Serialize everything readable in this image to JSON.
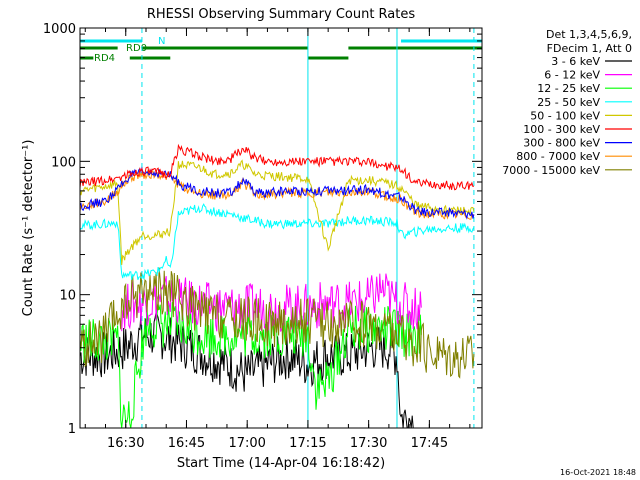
{
  "chart_data": {
    "type": "line",
    "title": "RHESSI Observing Summary Count Rates",
    "xlabel": "Start Time (14-Apr-04 16:18:42)",
    "ylabel": "Count Rate (s⁻¹ detector⁻¹)",
    "x_scale": "time",
    "y_scale": "log",
    "xlim": [
      "16:18:42",
      "17:58:00"
    ],
    "ylim": [
      1,
      1000
    ],
    "x_ticks": [
      "16:30",
      "16:45",
      "17:00",
      "17:15",
      "17:30",
      "17:45"
    ],
    "y_ticks": [
      "1",
      "10",
      "100",
      "1000"
    ],
    "legend_header": [
      "Det 1,3,4,5,6,9,",
      "FDecim 1, Att 0"
    ],
    "legend_position": "right",
    "footer_timestamp": "16-Oct-2021 18:48",
    "flags": {
      "N": {
        "label": "N",
        "color": "#00e5ee",
        "intervals": [
          [
            "16:18:42",
            "16:34:00"
          ],
          [
            "17:38:00",
            "17:58:00"
          ]
        ]
      },
      "RD0": {
        "label": "RD0",
        "color": "#008000",
        "intervals": [
          [
            "16:18:42",
            "16:28:00"
          ],
          [
            "16:34:00",
            "17:15:00"
          ],
          [
            "17:25:00",
            "17:58:00"
          ]
        ]
      },
      "RD4": {
        "label": "RD4",
        "color": "#008000",
        "intervals": [
          [
            "16:18:42",
            "16:22:00"
          ],
          [
            "16:31:00",
            "16:41:00"
          ],
          [
            "17:15:00",
            "17:25:00"
          ]
        ]
      }
    },
    "vlines_solid": [
      "16:18:42",
      "17:15:00",
      "17:37:00"
    ],
    "vlines_dashed": [
      "16:34:00",
      "17:56:00"
    ],
    "series": [
      {
        "name": "3 - 6 keV",
        "color": "#000000",
        "x": [
          "16:18:42",
          "16:25:00",
          "16:30:00",
          "16:34:00",
          "16:38:00",
          "16:42:00",
          "16:46:00",
          "16:50:00",
          "16:55:00",
          "17:00:00",
          "17:05:00",
          "17:10:00",
          "17:15:00",
          "17:20:00",
          "17:25:00",
          "17:30:00",
          "17:35:00",
          "17:37:00",
          "17:38:00",
          "17:40:00",
          "17:42:00"
        ],
        "y": [
          3.5,
          3.5,
          4,
          5,
          5,
          4.5,
          4,
          3.5,
          3.0,
          2.5,
          3,
          3.5,
          3,
          3.5,
          3.5,
          4,
          4,
          3.5,
          1.2,
          1.2,
          1
        ]
      },
      {
        "name": "6 - 12 keV",
        "color": "#ff00ff",
        "x": [
          "16:29:00",
          "16:32:00",
          "16:36:00",
          "16:40:00",
          "16:44:00",
          "16:48:00",
          "16:52:00",
          "16:56:00",
          "17:00:00",
          "17:05:00",
          "17:10:00",
          "17:15:00",
          "17:20:00",
          "17:25:00",
          "17:30:00",
          "17:33:00",
          "17:36:00",
          "17:40:00",
          "17:43:00"
        ],
        "y": [
          8,
          8.5,
          9,
          9.5,
          9,
          8.5,
          8,
          8,
          8,
          8,
          8,
          8,
          8.5,
          8.5,
          9,
          11,
          9,
          8,
          8
        ]
      },
      {
        "name": "12 - 25 keV",
        "color": "#00ff00",
        "x": [
          "16:18:42",
          "16:26:00",
          "16:28:00",
          "16:29:00",
          "16:31:00",
          "16:35:00",
          "16:40:00",
          "16:45:00",
          "16:50:00",
          "16:55:00",
          "17:00:00",
          "17:05:00",
          "17:10:00",
          "17:15:00",
          "17:17:00",
          "17:20:00",
          "17:25:00",
          "17:30:00",
          "17:35:00",
          "17:40:00",
          "17:43:00"
        ],
        "y": [
          4.5,
          4.5,
          4.5,
          1.2,
          1.2,
          6,
          6,
          5.5,
          5,
          5,
          5,
          5,
          5,
          5,
          2,
          2.2,
          5.5,
          5.5,
          5.5,
          5,
          5
        ]
      },
      {
        "name": "25 - 50 keV",
        "color": "#00ffff",
        "x": [
          "16:18:42",
          "16:26:00",
          "16:28:00",
          "16:29:00",
          "16:34:00",
          "16:38:00",
          "16:40:00",
          "16:41:00",
          "16:43:00",
          "16:48:00",
          "16:52:00",
          "16:56:00",
          "17:00:00",
          "17:05:00",
          "17:10:00",
          "17:15:00",
          "17:20:00",
          "17:25:00",
          "17:30:00",
          "17:35:00",
          "17:37:00",
          "17:38:00",
          "17:45:00",
          "17:56:00"
        ],
        "y": [
          33,
          34,
          35,
          14,
          14,
          15,
          18,
          15,
          40,
          45,
          42,
          40,
          37,
          34,
          34,
          34,
          34,
          36,
          36,
          35,
          35,
          28,
          31,
          32
        ]
      },
      {
        "name": "50 - 100 keV",
        "color": "#d0c800",
        "x": [
          "16:18:42",
          "16:25:00",
          "16:28:00",
          "16:29:00",
          "16:31:00",
          "16:34:00",
          "16:38:00",
          "16:41:00",
          "16:43:00",
          "16:48:00",
          "16:52:00",
          "16:56:00",
          "16:59:00",
          "17:02:00",
          "17:05:00",
          "17:10:00",
          "17:15:00",
          "17:20:00",
          "17:25:00",
          "17:30:00",
          "17:35:00",
          "17:38:00",
          "17:42:00",
          "17:50:00",
          "17:56:00"
        ],
        "y": [
          60,
          65,
          68,
          18,
          22,
          28,
          28,
          30,
          95,
          90,
          80,
          82,
          95,
          80,
          78,
          76,
          74,
          22,
          72,
          72,
          68,
          63,
          46,
          43,
          42
        ]
      },
      {
        "name": "100 - 300 keV",
        "color": "#ff0000",
        "x": [
          "16:18:42",
          "16:25:00",
          "16:28:00",
          "16:31:00",
          "16:34:00",
          "16:38:00",
          "16:41:00",
          "16:43:00",
          "16:48:00",
          "16:52:00",
          "16:56:00",
          "16:59:00",
          "17:02:00",
          "17:05:00",
          "17:10:00",
          "17:15:00",
          "17:20:00",
          "17:25:00",
          "17:30:00",
          "17:35:00",
          "17:38:00",
          "17:42:00",
          "17:50:00",
          "17:56:00"
        ],
        "y": [
          68,
          72,
          75,
          80,
          85,
          82,
          80,
          125,
          110,
          100,
          105,
          125,
          105,
          100,
          100,
          100,
          100,
          100,
          98,
          92,
          86,
          68,
          66,
          65
        ]
      },
      {
        "name": "300 - 800 keV",
        "color": "#0000ff",
        "x": [
          "16:18:42",
          "16:25:00",
          "16:28:00",
          "16:31:00",
          "16:34:00",
          "16:38:00",
          "16:41:00",
          "16:44:00",
          "16:48:00",
          "16:52:00",
          "16:56:00",
          "16:59:00",
          "17:02:00",
          "17:05:00",
          "17:10:00",
          "17:15:00",
          "17:20:00",
          "17:25:00",
          "17:30:00",
          "17:35:00",
          "17:38:00",
          "17:42:00",
          "17:50:00",
          "17:56:00"
        ],
        "y": [
          46,
          50,
          62,
          78,
          82,
          82,
          78,
          66,
          60,
          58,
          58,
          72,
          58,
          58,
          60,
          60,
          60,
          60,
          62,
          56,
          54,
          42,
          41,
          40
        ]
      },
      {
        "name": "800 - 7000 keV",
        "color": "#ff8c00",
        "x": [
          "16:18:42",
          "16:25:00",
          "16:28:00",
          "16:31:00",
          "16:34:00",
          "16:38:00",
          "16:41:00",
          "16:44:00",
          "16:48:00",
          "16:52:00",
          "16:56:00",
          "16:59:00",
          "17:02:00",
          "17:05:00",
          "17:10:00",
          "17:15:00",
          "17:20:00",
          "17:25:00",
          "17:30:00",
          "17:35:00",
          "17:38:00",
          "17:42:00",
          "17:50:00",
          "17:56:00"
        ],
        "y": [
          45,
          50,
          60,
          75,
          80,
          80,
          76,
          64,
          58,
          56,
          56,
          70,
          56,
          56,
          58,
          58,
          58,
          58,
          60,
          54,
          52,
          40,
          40,
          39
        ]
      },
      {
        "name": "7000 - 15000 keV",
        "color": "#808000",
        "x": [
          "16:18:42",
          "16:24:00",
          "16:28:00",
          "16:31:00",
          "16:34:00",
          "16:38:00",
          "16:42:00",
          "16:46:00",
          "16:50:00",
          "16:55:00",
          "17:00:00",
          "17:05:00",
          "17:10:00",
          "17:15:00",
          "17:20:00",
          "17:25:00",
          "17:30:00",
          "17:35:00",
          "17:40:00",
          "17:45:00",
          "17:50:00",
          "17:56:00"
        ],
        "y": [
          4,
          4.5,
          7,
          9,
          11,
          11,
          10,
          8,
          7,
          6.5,
          6.5,
          6,
          6,
          6.5,
          6,
          6,
          6,
          5.5,
          4.5,
          3.8,
          3.6,
          3.6
        ]
      }
    ]
  }
}
